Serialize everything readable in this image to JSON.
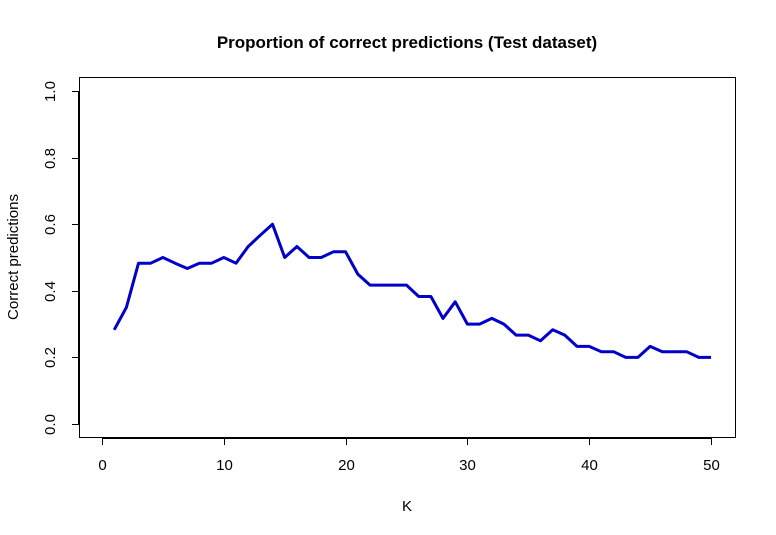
{
  "chart_data": {
    "type": "line",
    "title": "Proportion of correct predictions (Test dataset)",
    "xlabel": "K",
    "ylabel": "Correct predictions",
    "xlim": [
      0,
      50
    ],
    "ylim": [
      0,
      1
    ],
    "xticks": [
      0,
      10,
      20,
      30,
      40,
      50
    ],
    "yticks": [
      0.0,
      0.2,
      0.4,
      0.6,
      0.8,
      1.0
    ],
    "xtick_labels": [
      "0",
      "10",
      "20",
      "30",
      "40",
      "50"
    ],
    "ytick_labels": [
      "0.0",
      "0.2",
      "0.4",
      "0.6",
      "0.8",
      "1.0"
    ],
    "grid": false,
    "series": [
      {
        "color": "#0000c8",
        "x": [
          1,
          2,
          3,
          4,
          5,
          6,
          7,
          8,
          9,
          10,
          11,
          12,
          13,
          14,
          15,
          16,
          17,
          18,
          19,
          20,
          21,
          22,
          23,
          24,
          25,
          26,
          27,
          28,
          29,
          30,
          31,
          32,
          33,
          34,
          35,
          36,
          37,
          38,
          39,
          40,
          41,
          42,
          43,
          44,
          45,
          46,
          47,
          48,
          49,
          50
        ],
        "values": [
          0.283,
          0.35,
          0.483,
          0.483,
          0.5,
          0.483,
          0.467,
          0.483,
          0.483,
          0.5,
          0.483,
          0.533,
          0.567,
          0.6,
          0.5,
          0.533,
          0.5,
          0.5,
          0.517,
          0.517,
          0.45,
          0.417,
          0.417,
          0.417,
          0.417,
          0.383,
          0.383,
          0.317,
          0.367,
          0.3,
          0.3,
          0.317,
          0.3,
          0.267,
          0.267,
          0.25,
          0.283,
          0.267,
          0.233,
          0.233,
          0.217,
          0.217,
          0.2,
          0.2,
          0.233,
          0.217,
          0.217,
          0.217,
          0.2,
          0.2
        ]
      }
    ]
  }
}
